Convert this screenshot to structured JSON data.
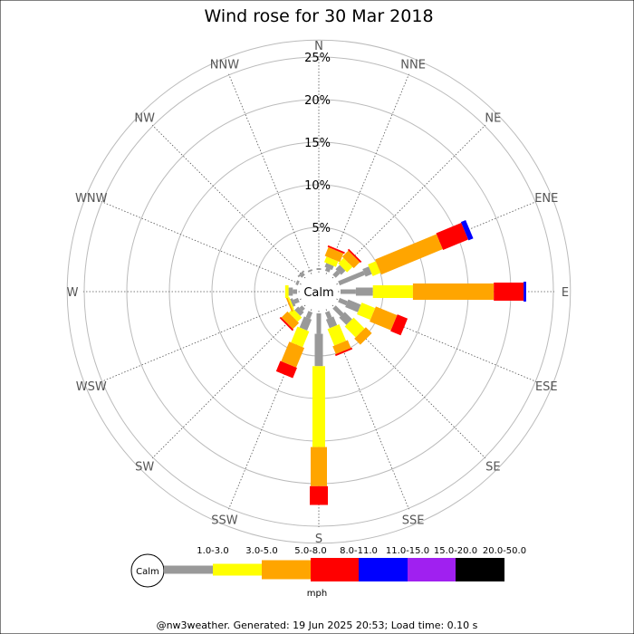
{
  "chart_data": {
    "type": "wind-rose",
    "title": "Wind rose for 30 Mar 2018",
    "calm_label": "Calm",
    "radial_ticks": [
      "5%",
      "10%",
      "15%",
      "20%",
      "25%"
    ],
    "radial_max": 27,
    "directions": [
      "N",
      "NNE",
      "NE",
      "ENE",
      "E",
      "ESE",
      "SE",
      "SSE",
      "S",
      "SSW",
      "SW",
      "WSW",
      "W",
      "WNW",
      "NW",
      "NNW"
    ],
    "speed_bins": [
      {
        "label": "",
        "color": "#999999"
      },
      {
        "label": "1.0-3.0",
        "color": "#999999"
      },
      {
        "label": "3.0-5.0",
        "color": "#ffff00"
      },
      {
        "label": "5.0-8.0",
        "color": "#ffa500"
      },
      {
        "label": "8.0-11.0",
        "color": "#ff0000"
      },
      {
        "label": "11.0-15.0",
        "color": "#0000ff"
      },
      {
        "label": "15.0-20.0",
        "color": "#a020f0"
      },
      {
        "label": "20.0-50.0",
        "color": "#000000"
      }
    ],
    "unit_label": "mph",
    "segments": [
      {
        "direction": "N",
        "cumulative": [
          0,
          0.2
        ]
      },
      {
        "direction": "NNE",
        "cumulative": [
          0,
          0.4,
          0.9,
          1.6,
          2.7,
          2.9
        ]
      },
      {
        "direction": "NE",
        "cumulative": [
          0,
          0.7,
          1.4,
          2.3,
          3.3,
          3.5
        ]
      },
      {
        "direction": "ENE",
        "cumulative": [
          0,
          3.2,
          4.0,
          5.0,
          12.8,
          16.0,
          16.6
        ]
      },
      {
        "direction": "E",
        "cumulative": [
          0,
          1.8,
          3.8,
          8.5,
          18.0,
          21.5,
          21.8
        ]
      },
      {
        "direction": "ESE",
        "cumulative": [
          0,
          1.0,
          2.6,
          4.3,
          7.0,
          8.3
        ]
      },
      {
        "direction": "SE",
        "cumulative": [
          0,
          1.3,
          2.5,
          4.3,
          5.3
        ]
      },
      {
        "direction": "SSE",
        "cumulative": [
          0,
          0.8,
          1.9,
          4.0,
          5.0,
          5.2
        ]
      },
      {
        "direction": "S",
        "cumulative": [
          0,
          2.4,
          6.2,
          15.7,
          20.3,
          22.5
        ]
      },
      {
        "direction": "SSW",
        "cumulative": [
          0,
          0.8,
          2.2,
          4.2,
          6.7,
          8.0
        ]
      },
      {
        "direction": "SW",
        "cumulative": [
          0,
          0.4,
          1.0,
          1.7,
          2.7,
          2.9
        ]
      },
      {
        "direction": "WSW",
        "cumulative": [
          0,
          0.6,
          0.9,
          1.1,
          1.3
        ]
      },
      {
        "direction": "W",
        "cumulative": [
          0,
          0.5,
          1.0,
          1.4
        ]
      },
      {
        "direction": "WNW",
        "cumulative": [
          0,
          0.3
        ]
      },
      {
        "direction": "NW",
        "cumulative": [
          0,
          0.3,
          0.5
        ]
      },
      {
        "direction": "NNW",
        "cumulative": [
          0,
          0.2
        ]
      }
    ]
  },
  "footer": "@nw3weather. Generated: 19 Jun 2025 20:53; Load time: 0.10 s"
}
